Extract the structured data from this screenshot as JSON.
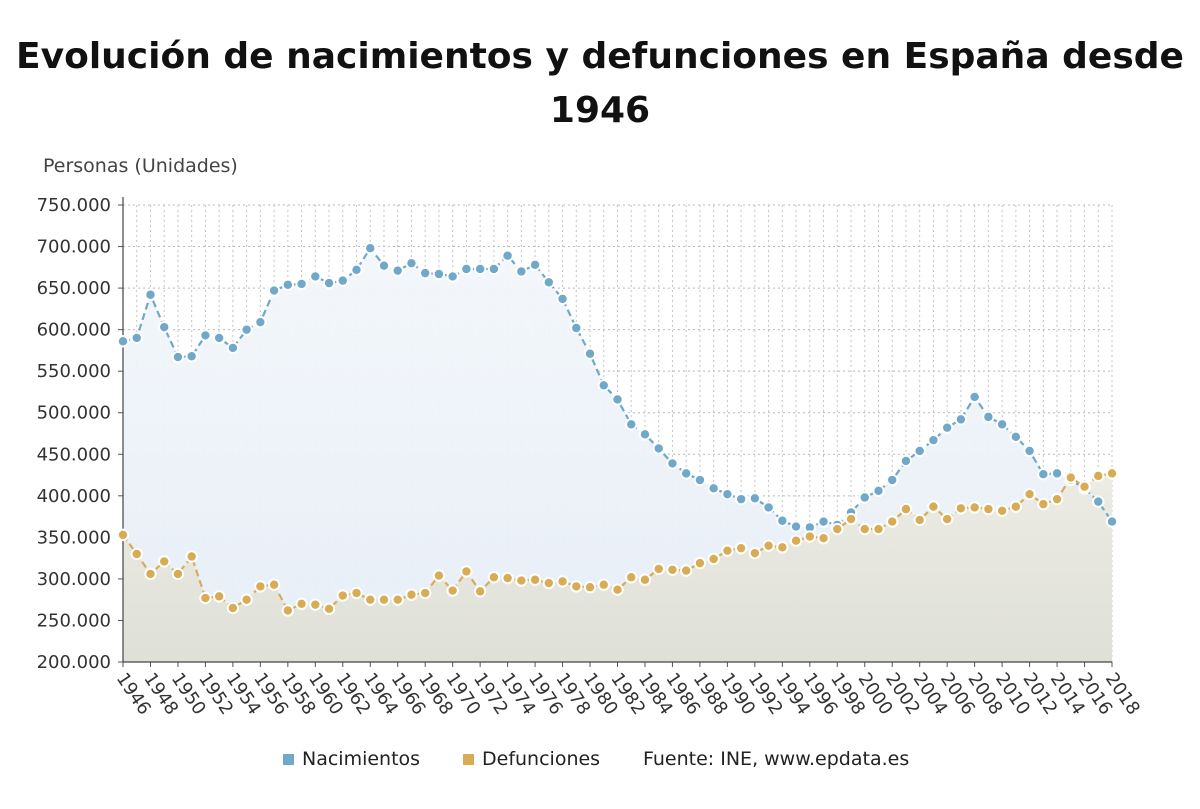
{
  "title": "Evolución de nacimientos y defunciones en España desde 1946",
  "y_axis_label": "Personas (Unidades)",
  "legend": {
    "items": [
      {
        "label": "Nacimientos",
        "color": "#6fa8c8"
      },
      {
        "label": "Defunciones",
        "color": "#d8ac55"
      }
    ],
    "source": "Fuente: INE, www.epdata.es"
  },
  "chart_data": {
    "type": "line",
    "title": "Evolución de nacimientos y defunciones en España desde 1946",
    "ylabel": "Personas (Unidades)",
    "xlabel": "",
    "ylim": [
      200000,
      750000
    ],
    "y_ticks": [
      200000,
      250000,
      300000,
      350000,
      400000,
      450000,
      500000,
      550000,
      600000,
      650000,
      700000,
      750000
    ],
    "y_tick_labels": [
      "200.000",
      "250.000",
      "300.000",
      "350.000",
      "400.000",
      "450.000",
      "500.000",
      "550.000",
      "600.000",
      "650.000",
      "700.000",
      "750.000"
    ],
    "x_tick_labels": [
      "1946",
      "1948",
      "1950",
      "1952",
      "1954",
      "1956",
      "1958",
      "1960",
      "1962",
      "1964",
      "1966",
      "1968",
      "1970",
      "1972",
      "1974",
      "1976",
      "1978",
      "1980",
      "1982",
      "1984",
      "1986",
      "1988",
      "1990",
      "1992",
      "1994",
      "1996",
      "1998",
      "2000",
      "2002",
      "2004",
      "2006",
      "2008",
      "2010",
      "2012",
      "2014",
      "2016",
      "2018"
    ],
    "grid": true,
    "legend_position": "bottom",
    "x": [
      1946,
      1947,
      1948,
      1949,
      1950,
      1951,
      1952,
      1953,
      1954,
      1955,
      1956,
      1957,
      1958,
      1959,
      1960,
      1961,
      1962,
      1963,
      1964,
      1965,
      1966,
      1967,
      1968,
      1969,
      1970,
      1971,
      1972,
      1973,
      1974,
      1975,
      1976,
      1977,
      1978,
      1979,
      1980,
      1981,
      1982,
      1983,
      1984,
      1985,
      1986,
      1987,
      1988,
      1989,
      1990,
      1991,
      1992,
      1993,
      1994,
      1995,
      1996,
      1997,
      1998,
      1999,
      2000,
      2001,
      2002,
      2003,
      2004,
      2005,
      2006,
      2007,
      2008,
      2009,
      2010,
      2011,
      2012,
      2013,
      2014,
      2015,
      2016,
      2017,
      2018
    ],
    "series": [
      {
        "name": "Nacimientos",
        "color": "#6fa8c8",
        "values": [
          586000,
          590000,
          642000,
          603000,
          567000,
          568000,
          593000,
          590000,
          578000,
          600000,
          609000,
          647000,
          654000,
          655000,
          664000,
          656000,
          659000,
          672000,
          698000,
          677000,
          671000,
          680000,
          668000,
          667000,
          664000,
          673000,
          673000,
          673000,
          689000,
          670000,
          678000,
          657000,
          637000,
          602000,
          571000,
          533000,
          516000,
          486000,
          474000,
          457000,
          439000,
          427000,
          419000,
          409000,
          402000,
          396000,
          397000,
          386000,
          370000,
          363000,
          362000,
          369000,
          365000,
          380000,
          398000,
          406000,
          419000,
          442000,
          454000,
          467000,
          482000,
          492000,
          519000,
          495000,
          486000,
          471000,
          454000,
          426000,
          427000,
          419000,
          409000,
          393000,
          369000
        ]
      },
      {
        "name": "Defunciones",
        "color": "#d8ac55",
        "values": [
          353000,
          330000,
          306000,
          321000,
          306000,
          327000,
          277000,
          279000,
          265000,
          275000,
          291000,
          293000,
          262000,
          270000,
          269000,
          264000,
          280000,
          283000,
          275000,
          275000,
          275000,
          281000,
          283000,
          304000,
          286000,
          309000,
          285000,
          302000,
          301000,
          298000,
          299000,
          295000,
          297000,
          291000,
          290000,
          293000,
          287000,
          302000,
          299000,
          312000,
          311000,
          310000,
          319000,
          324000,
          334000,
          337000,
          331000,
          340000,
          338000,
          346000,
          351000,
          349000,
          360000,
          372000,
          360000,
          360000,
          369000,
          384000,
          371000,
          387000,
          372000,
          385000,
          386000,
          384000,
          382000,
          387000,
          402000,
          390000,
          396000,
          422000,
          411000,
          424000,
          427000
        ]
      }
    ]
  }
}
